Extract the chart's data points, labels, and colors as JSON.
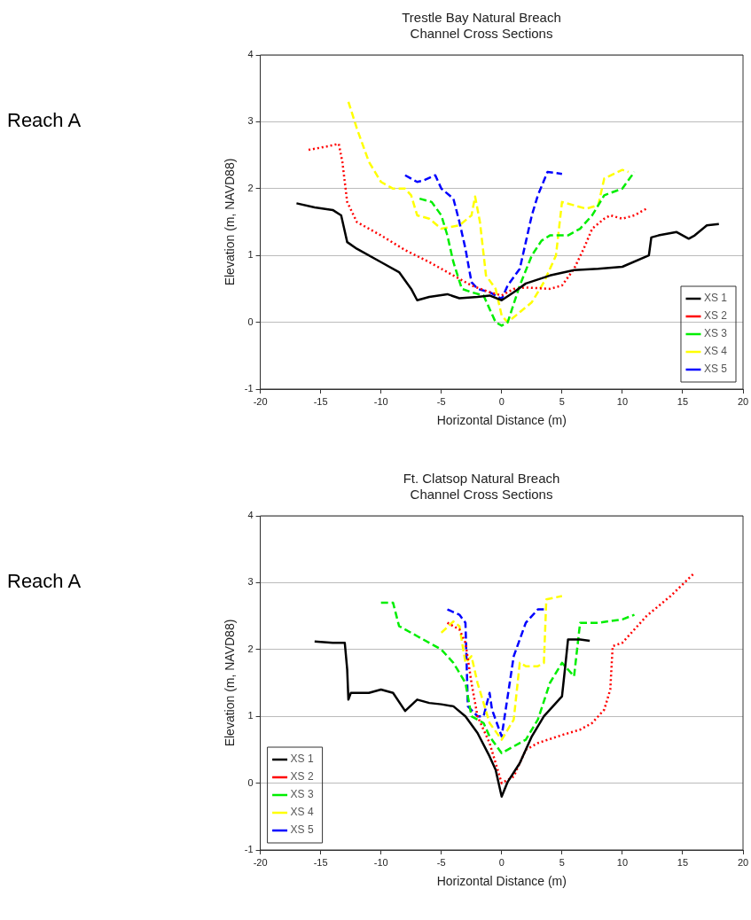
{
  "chart_data": [
    {
      "type": "line",
      "title": "Trestle Bay Natural Breach\nChannel Cross Sections",
      "xlabel": "Horizontal Distance (m)",
      "ylabel": "Elevation (m, NAVD88)",
      "annotations": [
        "Reach A"
      ],
      "xlim": [
        -20,
        20
      ],
      "xticks": [
        -20,
        -15,
        -10,
        -5,
        0,
        5,
        10,
        15,
        20
      ],
      "ylim": [
        -1,
        4
      ],
      "yticks": [
        -1,
        0,
        1,
        2,
        3,
        4
      ],
      "grid": "y",
      "legend": "bottom right",
      "marker": "none",
      "series": [
        {
          "name": "XS 1",
          "color": "#000000",
          "line_style": "solid",
          "x": [
            -17,
            -15.5,
            -14,
            -13.3,
            -12.8,
            -12,
            -10,
            -8.5,
            -7.5,
            -7,
            -6,
            -4.5,
            -3.5,
            -2,
            -1,
            0,
            1,
            2,
            4,
            6,
            8,
            10,
            12.2,
            12.4,
            13,
            14.5,
            15.5,
            16,
            17,
            18
          ],
          "values": [
            1.78,
            1.72,
            1.68,
            1.6,
            1.2,
            1.1,
            0.9,
            0.75,
            0.5,
            0.33,
            0.38,
            0.42,
            0.36,
            0.38,
            0.4,
            0.33,
            0.45,
            0.58,
            0.7,
            0.78,
            0.8,
            0.83,
            1.0,
            1.27,
            1.3,
            1.35,
            1.25,
            1.3,
            1.45,
            1.47
          ]
        },
        {
          "name": "XS 2",
          "color": "#ff0000",
          "line_style": "dotted",
          "x": [
            -16,
            -14.5,
            -13.5,
            -13.2,
            -12.8,
            -12,
            -10,
            -8,
            -6,
            -4,
            -2.5,
            -1,
            0,
            1,
            2,
            4,
            5,
            6,
            6.8,
            7.5,
            8.5,
            9,
            10,
            11,
            12
          ],
          "values": [
            2.58,
            2.63,
            2.67,
            2.4,
            1.8,
            1.5,
            1.3,
            1.08,
            0.9,
            0.7,
            0.55,
            0.45,
            0.4,
            0.5,
            0.52,
            0.5,
            0.55,
            0.8,
            1.1,
            1.4,
            1.55,
            1.6,
            1.55,
            1.6,
            1.7
          ]
        },
        {
          "name": "XS 3",
          "color": "#00ee00",
          "line_style": "dashed",
          "x": [
            -6.8,
            -5.8,
            -5,
            -4.5,
            -4,
            -3.3,
            -2.5,
            -1.5,
            -0.5,
            0,
            0.5,
            1.5,
            2.5,
            3.3,
            4,
            5.5,
            6.5,
            7.5,
            8.5,
            10,
            11
          ],
          "values": [
            1.85,
            1.8,
            1.6,
            1.3,
            0.9,
            0.5,
            0.45,
            0.4,
            0,
            -0.05,
            0,
            0.55,
            1.0,
            1.22,
            1.3,
            1.3,
            1.4,
            1.6,
            1.9,
            2.0,
            2.25
          ]
        },
        {
          "name": "XS 4",
          "color": "#ffff00",
          "line_style": "dashed",
          "x": [
            -12.7,
            -12,
            -11,
            -10,
            -9,
            -8,
            -7.5,
            -7,
            -6,
            -5,
            -3.5,
            -2.5,
            -2.2,
            -1.8,
            -1.3,
            -0.5,
            0,
            0.5,
            1.5,
            2.5,
            3.5,
            4.5,
            5,
            6,
            7,
            8,
            8.5,
            10,
            10.5
          ],
          "values": [
            3.3,
            2.9,
            2.4,
            2.1,
            2.0,
            2.0,
            1.9,
            1.6,
            1.55,
            1.4,
            1.45,
            1.6,
            1.88,
            1.5,
            0.7,
            0.5,
            0.1,
            0,
            0.15,
            0.3,
            0.6,
            1.0,
            1.8,
            1.75,
            1.7,
            1.75,
            2.15,
            2.28,
            2.25
          ]
        },
        {
          "name": "XS 5",
          "color": "#0000ff",
          "line_style": "dashed",
          "x": [
            -8,
            -7,
            -6.5,
            -5.5,
            -5,
            -4,
            -3.5,
            -3,
            -2.5,
            -2,
            -1,
            0,
            0.5,
            1.5,
            2,
            2.5,
            3,
            3.8,
            5
          ],
          "values": [
            2.2,
            2.1,
            2.12,
            2.2,
            2.0,
            1.85,
            1.5,
            1.1,
            0.6,
            0.5,
            0.45,
            0.35,
            0.55,
            0.8,
            1.2,
            1.6,
            1.9,
            2.25,
            2.22
          ]
        }
      ]
    },
    {
      "type": "line",
      "title": "Ft. Clatsop Natural Breach\nChannel Cross Sections",
      "xlabel": "Horizontal Distance (m)",
      "ylabel": "Elevation (m, NAVD88)",
      "annotations": [
        "Reach A"
      ],
      "xlim": [
        -20,
        20
      ],
      "xticks": [
        -20,
        -15,
        -10,
        -5,
        0,
        5,
        10,
        15,
        20
      ],
      "ylim": [
        -1,
        4
      ],
      "yticks": [
        -1,
        0,
        1,
        2,
        3,
        4
      ],
      "grid": "y",
      "legend": "bottom left",
      "marker": "none",
      "series": [
        {
          "name": "XS 1",
          "color": "#000000",
          "line_style": "solid",
          "x": [
            -15.5,
            -14,
            -13,
            -12.8,
            -12.7,
            -12.5,
            -11,
            -10,
            -9,
            -8,
            -7,
            -6,
            -5,
            -4,
            -3,
            -2,
            -1,
            -0.5,
            0,
            0.5,
            1.5,
            2.5,
            3.5,
            4.5,
            5,
            5.3,
            5.5,
            6.5,
            7.3
          ],
          "values": [
            2.12,
            2.1,
            2.1,
            1.7,
            1.25,
            1.35,
            1.35,
            1.4,
            1.35,
            1.08,
            1.25,
            1.2,
            1.18,
            1.15,
            1.0,
            0.75,
            0.4,
            0.2,
            -0.2,
            0.02,
            0.3,
            0.7,
            1.0,
            1.2,
            1.3,
            1.8,
            2.15,
            2.15,
            2.13
          ]
        },
        {
          "name": "XS 2",
          "color": "#ff0000",
          "line_style": "dotted",
          "x": [
            -4.5,
            -3.5,
            -3,
            -2.5,
            -2,
            -1,
            -0.5,
            0,
            1,
            2,
            3,
            5,
            6.5,
            7.5,
            8.5,
            9,
            9.2,
            10,
            11,
            12,
            14,
            16
          ],
          "values": [
            2.4,
            2.3,
            2.1,
            1.5,
            1.0,
            0.6,
            0.3,
            0.0,
            0.1,
            0.5,
            0.6,
            0.72,
            0.8,
            0.9,
            1.1,
            1.4,
            2.05,
            2.1,
            2.3,
            2.5,
            2.8,
            3.15
          ]
        },
        {
          "name": "XS 3",
          "color": "#00ee00",
          "line_style": "dashed",
          "x": [
            -10,
            -9,
            -8.5,
            -7,
            -5,
            -4,
            -3,
            -2.5,
            -1.5,
            -1,
            0,
            1,
            2,
            3,
            4,
            5,
            6,
            6.5,
            8,
            10,
            11
          ],
          "values": [
            2.7,
            2.7,
            2.35,
            2.2,
            2.0,
            1.8,
            1.5,
            1.0,
            0.9,
            0.7,
            0.45,
            0.55,
            0.65,
            0.95,
            1.5,
            1.8,
            1.6,
            2.4,
            2.4,
            2.45,
            2.52
          ]
        },
        {
          "name": "XS 4",
          "color": "#ffff00",
          "line_style": "dashed",
          "x": [
            -5,
            -4,
            -3.5,
            -3,
            -2.5,
            -2,
            -1,
            0,
            1,
            1.5,
            2,
            3,
            3.5,
            3.7,
            5
          ],
          "values": [
            2.25,
            2.42,
            2.35,
            1.8,
            1.9,
            1.5,
            0.9,
            0.65,
            0.95,
            1.8,
            1.75,
            1.75,
            1.8,
            2.75,
            2.8
          ]
        },
        {
          "name": "XS 5",
          "color": "#0000ff",
          "line_style": "dashed",
          "x": [
            -4.5,
            -3.5,
            -3,
            -2.8,
            -2,
            -1.5,
            -1,
            -0.8,
            -0.5,
            0,
            0.5,
            1,
            2,
            3,
            3.5
          ],
          "values": [
            2.6,
            2.52,
            2.4,
            1.15,
            1.0,
            1.0,
            1.35,
            1.1,
            0.95,
            0.7,
            1.3,
            1.9,
            2.4,
            2.6,
            2.6
          ]
        }
      ]
    }
  ]
}
